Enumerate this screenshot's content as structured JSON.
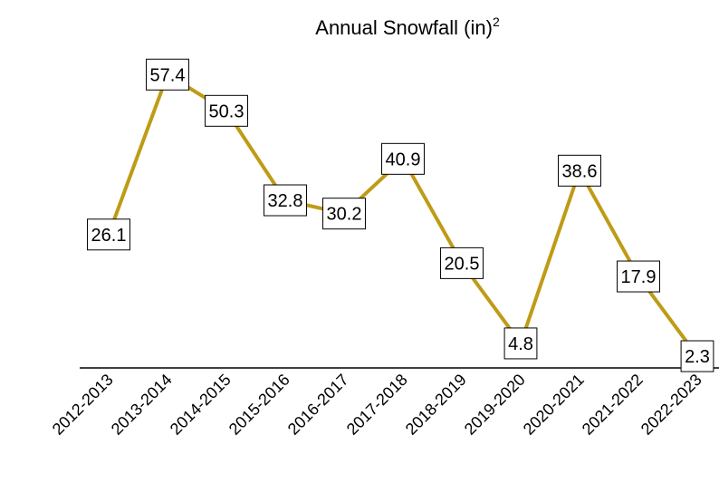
{
  "chart_data": {
    "type": "line",
    "title": "Annual Snowfall (in)",
    "title_superscript": "2",
    "categories": [
      "2012-2013",
      "2013-2014",
      "2014-2015",
      "2015-2016",
      "2016-2017",
      "2017-2018",
      "2018-2019",
      "2019-2020",
      "2020-2021",
      "2021-2022",
      "2022-2023"
    ],
    "values": [
      26.1,
      57.4,
      50.3,
      32.8,
      30.2,
      40.9,
      20.5,
      4.8,
      38.6,
      17.9,
      2.3
    ],
    "color": "#bf9b16",
    "ylim": [
      0,
      60
    ]
  }
}
